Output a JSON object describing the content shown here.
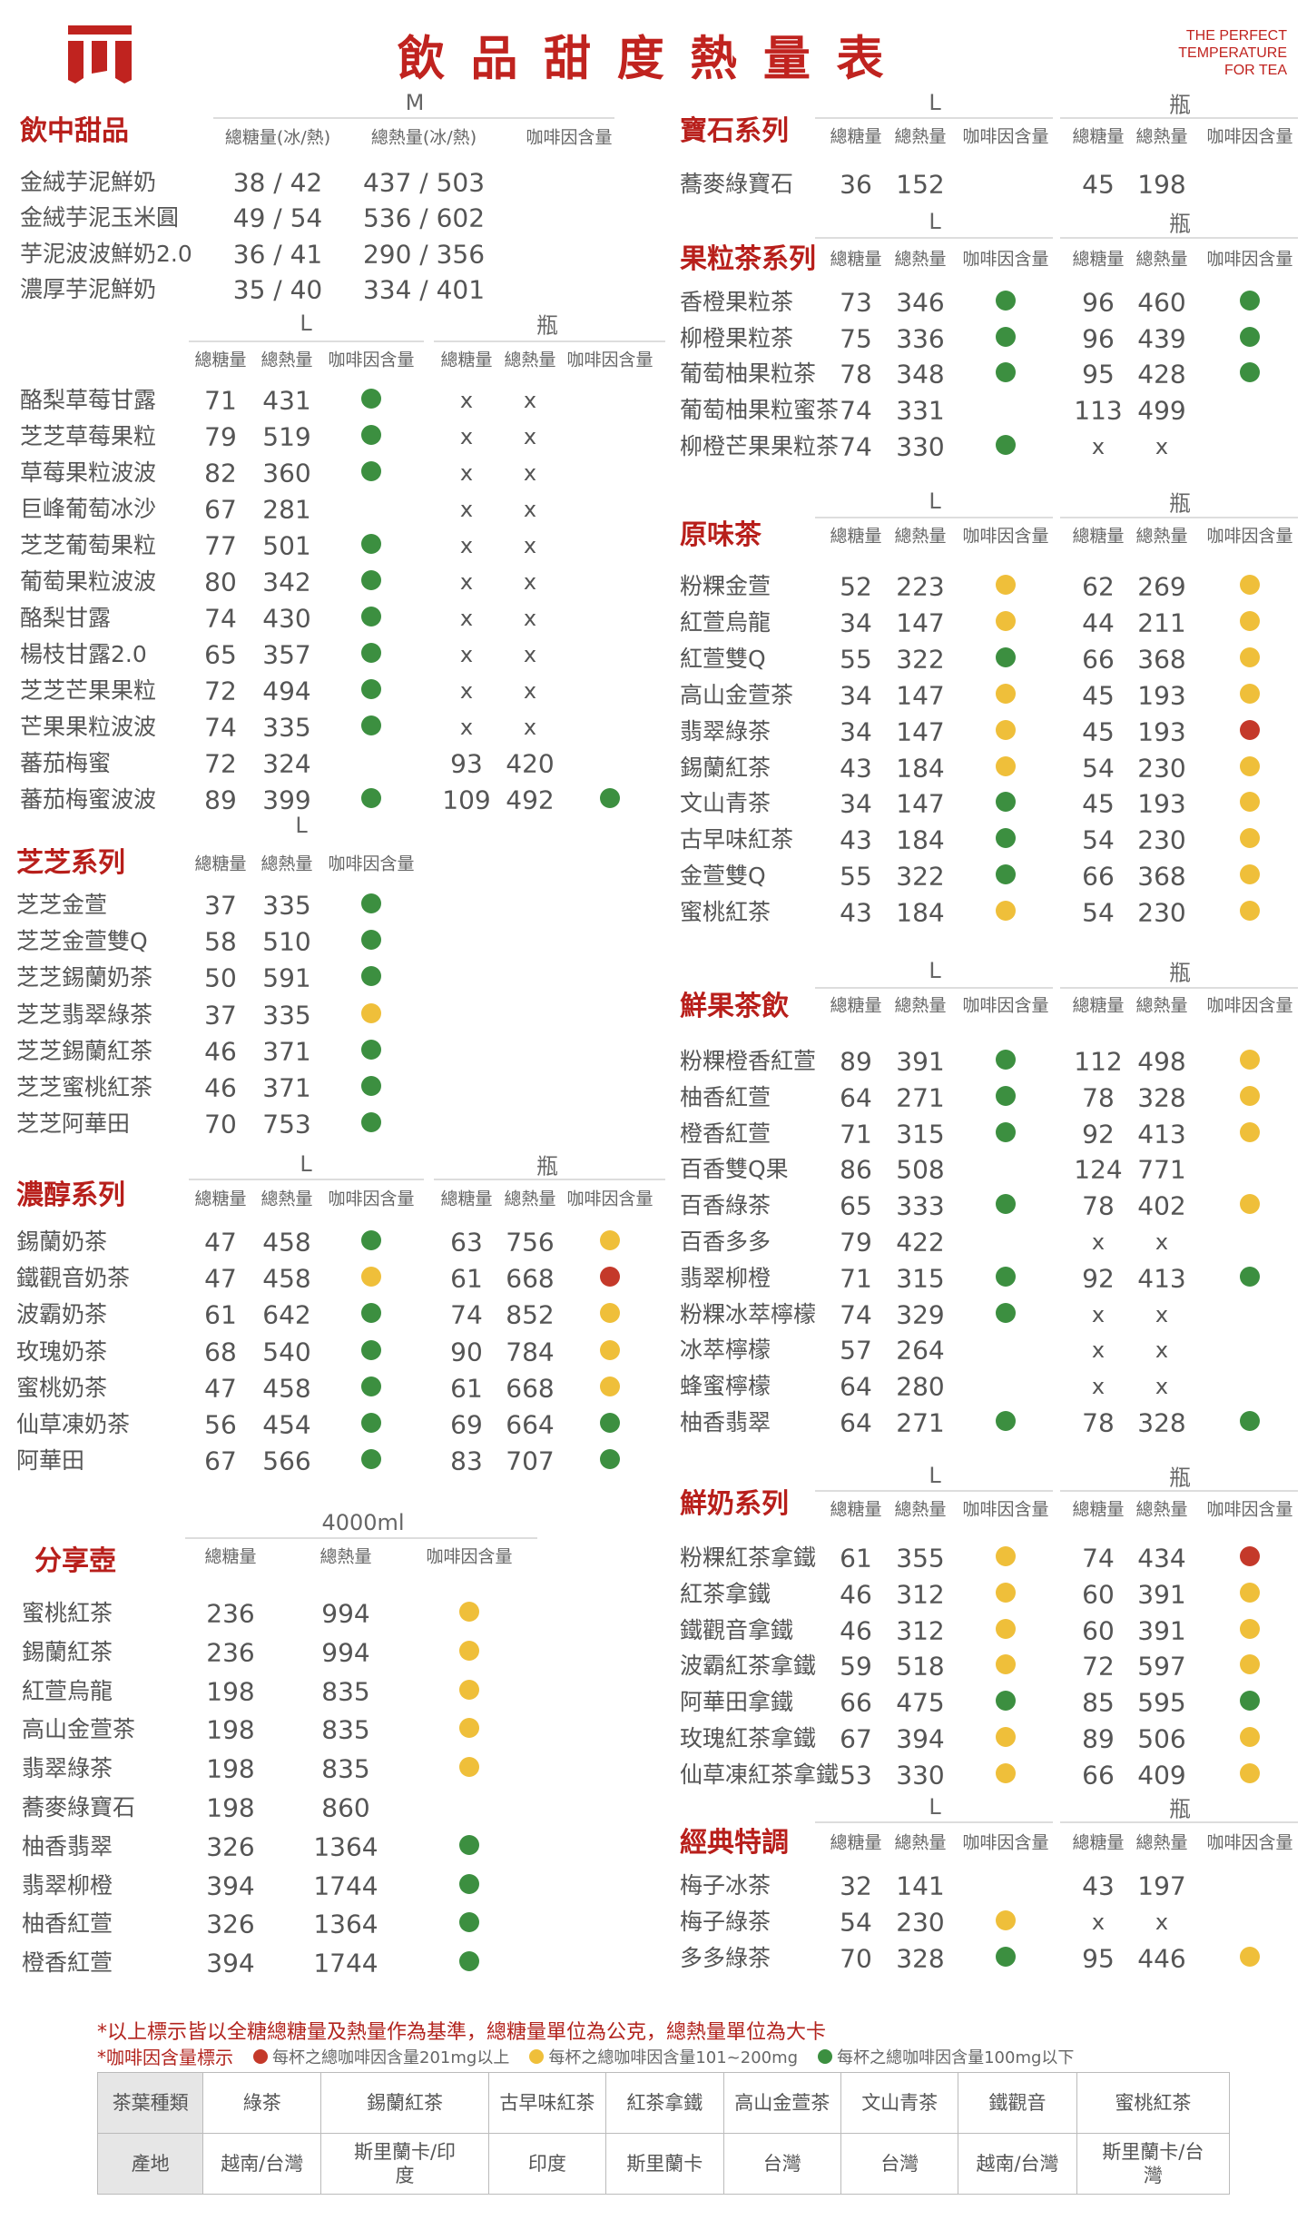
{
  "header": {
    "title": "飲品甜度熱量表",
    "tagline": [
      "THE PERFECT",
      "TEMPERATURE",
      "FOR TEA"
    ],
    "brand_color": "#c0231f"
  },
  "dot_colors": {
    "green": "#3c8f40",
    "yellow": "#efbf3a",
    "red": "#c4392a"
  },
  "sections": [
    {
      "id": "sweet",
      "title": "飲中甜品",
      "sizes": [
        "M"
      ],
      "headers": [
        "總糖量(冰/熱)",
        "總熱量(冰/熱)",
        "咖啡因含量"
      ],
      "rows": [
        [
          "金絨芋泥鮮奶",
          "38 / 42",
          "437 / 503",
          ""
        ],
        [
          "金絨芋泥玉米圓",
          "49 / 54",
          "536 / 602",
          ""
        ],
        [
          "芋泥波波鮮奶2.0",
          "36 / 41",
          "290 / 356",
          ""
        ],
        [
          "濃厚芋泥鮮奶",
          "35 / 40",
          "334 / 401",
          ""
        ]
      ]
    },
    {
      "id": "fruit",
      "title": "",
      "sizes": [
        "L",
        "瓶"
      ],
      "headers": [
        "總糖量",
        "總熱量",
        "咖啡因含量",
        "總糖量",
        "總熱量",
        "咖啡因含量"
      ],
      "rows": [
        [
          "酪梨草莓甘露",
          "71",
          "431",
          "green",
          "x",
          "x",
          ""
        ],
        [
          "芝芝草莓果粒",
          "79",
          "519",
          "green",
          "x",
          "x",
          ""
        ],
        [
          "草莓果粒波波",
          "82",
          "360",
          "green",
          "x",
          "x",
          ""
        ],
        [
          "巨峰葡萄冰沙",
          "67",
          "281",
          "",
          "x",
          "x",
          ""
        ],
        [
          "芝芝葡萄果粒",
          "77",
          "501",
          "green",
          "x",
          "x",
          ""
        ],
        [
          "葡萄果粒波波",
          "80",
          "342",
          "green",
          "x",
          "x",
          ""
        ],
        [
          "酪梨甘露",
          "74",
          "430",
          "green",
          "x",
          "x",
          ""
        ],
        [
          "楊枝甘露2.0",
          "65",
          "357",
          "green",
          "x",
          "x",
          ""
        ],
        [
          "芝芝芒果果粒",
          "72",
          "494",
          "green",
          "x",
          "x",
          ""
        ],
        [
          "芒果果粒波波",
          "74",
          "335",
          "green",
          "x",
          "x",
          ""
        ],
        [
          "蕃茄梅蜜",
          "72",
          "324",
          "",
          "93",
          "420",
          ""
        ],
        [
          "蕃茄梅蜜波波",
          "89",
          "399",
          "green",
          "109",
          "492",
          "green"
        ]
      ]
    },
    {
      "id": "zhizhi",
      "title": "芝芝系列",
      "sizes": [
        "L"
      ],
      "headers": [
        "總糖量",
        "總熱量",
        "咖啡因含量"
      ],
      "rows": [
        [
          "芝芝金萱",
          "37",
          "335",
          "green"
        ],
        [
          "芝芝金萱雙Q",
          "58",
          "510",
          "green"
        ],
        [
          "芝芝錫蘭奶茶",
          "50",
          "591",
          "green"
        ],
        [
          "芝芝翡翠綠茶",
          "37",
          "335",
          "yellow"
        ],
        [
          "芝芝錫蘭紅茶",
          "46",
          "371",
          "green"
        ],
        [
          "芝芝蜜桃紅茶",
          "46",
          "371",
          "green"
        ],
        [
          "芝芝阿華田",
          "70",
          "753",
          "green"
        ]
      ]
    },
    {
      "id": "rich",
      "title": "濃醇系列",
      "sizes": [
        "L",
        "瓶"
      ],
      "headers": [
        "總糖量",
        "總熱量",
        "咖啡因含量",
        "總糖量",
        "總熱量",
        "咖啡因含量"
      ],
      "rows": [
        [
          "錫蘭奶茶",
          "47",
          "458",
          "green",
          "63",
          "756",
          "yellow"
        ],
        [
          "鐵觀音奶茶",
          "47",
          "458",
          "yellow",
          "61",
          "668",
          "red"
        ],
        [
          "波霸奶茶",
          "61",
          "642",
          "green",
          "74",
          "852",
          "yellow"
        ],
        [
          "玫瑰奶茶",
          "68",
          "540",
          "green",
          "90",
          "784",
          "yellow"
        ],
        [
          "蜜桃奶茶",
          "47",
          "458",
          "green",
          "61",
          "668",
          "yellow"
        ],
        [
          "仙草凍奶茶",
          "56",
          "454",
          "green",
          "69",
          "664",
          "green"
        ],
        [
          "阿華田",
          "67",
          "566",
          "green",
          "83",
          "707",
          "green"
        ]
      ]
    },
    {
      "id": "share",
      "title": "分享壺",
      "sizes": [
        "4000ml"
      ],
      "headers": [
        "總糖量",
        "總熱量",
        "咖啡因含量"
      ],
      "rows": [
        [
          "蜜桃紅茶",
          "236",
          "994",
          "yellow"
        ],
        [
          "錫蘭紅茶",
          "236",
          "994",
          "yellow"
        ],
        [
          "紅萱烏龍",
          "198",
          "835",
          "yellow"
        ],
        [
          "高山金萱茶",
          "198",
          "835",
          "yellow"
        ],
        [
          "翡翠綠茶",
          "198",
          "835",
          "yellow"
        ],
        [
          "蕎麥綠寶石",
          "198",
          "860",
          ""
        ],
        [
          "柚香翡翠",
          "326",
          "1364",
          "green"
        ],
        [
          "翡翠柳橙",
          "394",
          "1744",
          "green"
        ],
        [
          "柚香紅萱",
          "326",
          "1364",
          "green"
        ],
        [
          "橙香紅萱",
          "394",
          "1744",
          "green"
        ]
      ]
    },
    {
      "id": "gem",
      "title": "寶石系列",
      "sizes": [
        "L",
        "瓶"
      ],
      "headers": [
        "總糖量",
        "總熱量",
        "咖啡因含量",
        "總糖量",
        "總熱量",
        "咖啡因含量"
      ],
      "rows": [
        [
          "蕎麥綠寶石",
          "36",
          "152",
          "",
          "45",
          "198",
          ""
        ]
      ]
    },
    {
      "id": "fruittea",
      "title": "果粒茶系列",
      "sizes": [
        "L",
        "瓶"
      ],
      "headers": [
        "總糖量",
        "總熱量",
        "咖啡因含量",
        "總糖量",
        "總熱量",
        "咖啡因含量"
      ],
      "rows": [
        [
          "香橙果粒茶",
          "73",
          "346",
          "green",
          "96",
          "460",
          "green"
        ],
        [
          "柳橙果粒茶",
          "75",
          "336",
          "green",
          "96",
          "439",
          "green"
        ],
        [
          "葡萄柚果粒茶",
          "78",
          "348",
          "green",
          "95",
          "428",
          "green"
        ],
        [
          "葡萄柚果粒蜜茶",
          "74",
          "331",
          "",
          "113",
          "499",
          ""
        ],
        [
          "柳橙芒果果粒茶",
          "74",
          "330",
          "green",
          "x",
          "x",
          ""
        ]
      ]
    },
    {
      "id": "original",
      "title": "原味茶",
      "sizes": [
        "L",
        "瓶"
      ],
      "headers": [
        "總糖量",
        "總熱量",
        "咖啡因含量",
        "總糖量",
        "總熱量",
        "咖啡因含量"
      ],
      "rows": [
        [
          "粉粿金萱",
          "52",
          "223",
          "yellow",
          "62",
          "269",
          "yellow"
        ],
        [
          "紅萱烏龍",
          "34",
          "147",
          "yellow",
          "44",
          "211",
          "yellow"
        ],
        [
          "紅萱雙Q",
          "55",
          "322",
          "green",
          "66",
          "368",
          "yellow"
        ],
        [
          "高山金萱茶",
          "34",
          "147",
          "yellow",
          "45",
          "193",
          "yellow"
        ],
        [
          "翡翠綠茶",
          "34",
          "147",
          "yellow",
          "45",
          "193",
          "red"
        ],
        [
          "錫蘭紅茶",
          "43",
          "184",
          "yellow",
          "54",
          "230",
          "yellow"
        ],
        [
          "文山青茶",
          "34",
          "147",
          "green",
          "45",
          "193",
          "yellow"
        ],
        [
          "古早味紅茶",
          "43",
          "184",
          "green",
          "54",
          "230",
          "yellow"
        ],
        [
          "金萱雙Q",
          "55",
          "322",
          "green",
          "66",
          "368",
          "yellow"
        ],
        [
          "蜜桃紅茶",
          "43",
          "184",
          "yellow",
          "54",
          "230",
          "yellow"
        ]
      ]
    },
    {
      "id": "freshfruit",
      "title": "鮮果茶飲",
      "sizes": [
        "L",
        "瓶"
      ],
      "headers": [
        "總糖量",
        "總熱量",
        "咖啡因含量",
        "總糖量",
        "總熱量",
        "咖啡因含量"
      ],
      "rows": [
        [
          "粉粿橙香紅萱",
          "89",
          "391",
          "green",
          "112",
          "498",
          "yellow"
        ],
        [
          "柚香紅萱",
          "64",
          "271",
          "green",
          "78",
          "328",
          "yellow"
        ],
        [
          "橙香紅萱",
          "71",
          "315",
          "green",
          "92",
          "413",
          "yellow"
        ],
        [
          "百香雙Q果",
          "86",
          "508",
          "",
          "124",
          "771",
          ""
        ],
        [
          "百香綠茶",
          "65",
          "333",
          "green",
          "78",
          "402",
          "yellow"
        ],
        [
          "百香多多",
          "79",
          "422",
          "",
          "x",
          "x",
          ""
        ],
        [
          "翡翠柳橙",
          "71",
          "315",
          "green",
          "92",
          "413",
          "green"
        ],
        [
          "粉粿冰萃檸檬",
          "74",
          "329",
          "green",
          "x",
          "x",
          ""
        ],
        [
          "冰萃檸檬",
          "57",
          "264",
          "",
          "x",
          "x",
          ""
        ],
        [
          "蜂蜜檸檬",
          "64",
          "280",
          "",
          "x",
          "x",
          ""
        ],
        [
          "柚香翡翠",
          "64",
          "271",
          "green",
          "78",
          "328",
          "green"
        ]
      ]
    },
    {
      "id": "milk",
      "title": "鮮奶系列",
      "sizes": [
        "L",
        "瓶"
      ],
      "headers": [
        "總糖量",
        "總熱量",
        "咖啡因含量",
        "總糖量",
        "總熱量",
        "咖啡因含量"
      ],
      "rows": [
        [
          "粉粿紅茶拿鐵",
          "61",
          "355",
          "yellow",
          "74",
          "434",
          "red"
        ],
        [
          "紅茶拿鐵",
          "46",
          "312",
          "yellow",
          "60",
          "391",
          "yellow"
        ],
        [
          "鐵觀音拿鐵",
          "46",
          "312",
          "yellow",
          "60",
          "391",
          "yellow"
        ],
        [
          "波霸紅茶拿鐵",
          "59",
          "518",
          "yellow",
          "72",
          "597",
          "yellow"
        ],
        [
          "阿華田拿鐵",
          "66",
          "475",
          "green",
          "85",
          "595",
          "green"
        ],
        [
          "玫瑰紅茶拿鐵",
          "67",
          "394",
          "yellow",
          "89",
          "506",
          "yellow"
        ],
        [
          "仙草凍紅茶拿鐵",
          "53",
          "330",
          "yellow",
          "66",
          "409",
          "yellow"
        ]
      ]
    },
    {
      "id": "classic",
      "title": "經典特調",
      "sizes": [
        "L",
        "瓶"
      ],
      "headers": [
        "總糖量",
        "總熱量",
        "咖啡因含量",
        "總糖量",
        "總熱量",
        "咖啡因含量"
      ],
      "rows": [
        [
          "梅子冰茶",
          "32",
          "141",
          "",
          "43",
          "197",
          ""
        ],
        [
          "梅子綠茶",
          "54",
          "230",
          "yellow",
          "x",
          "x",
          ""
        ],
        [
          "多多綠茶",
          "70",
          "328",
          "green",
          "95",
          "446",
          "yellow"
        ]
      ]
    }
  ],
  "notes": {
    "line1": "*以上標示皆以全糖總糖量及熱量作為基準，總糖量單位為公克，總熱量單位為大卡",
    "line2_label": "*咖啡因含量標示",
    "legend": [
      {
        "color": "red",
        "text": "每杯之總咖啡因含量201mg以上"
      },
      {
        "color": "yellow",
        "text": "每杯之總咖啡因含量101~200mg"
      },
      {
        "color": "green",
        "text": "每杯之總咖啡因含量100mg以下"
      }
    ]
  },
  "origin_table": {
    "row_headers": [
      "茶葉種類",
      "產地"
    ],
    "teas": [
      "綠茶",
      "錫蘭紅茶",
      "古早味紅茶",
      "紅茶拿鐵",
      "高山金萱茶",
      "文山青茶",
      "鐵觀音",
      "蜜桃紅茶"
    ],
    "origins": [
      "越南/台灣",
      "斯里蘭卡/印度",
      "印度",
      "斯里蘭卡",
      "台灣",
      "台灣",
      "越南/台灣",
      "斯里蘭卡/台灣"
    ]
  }
}
